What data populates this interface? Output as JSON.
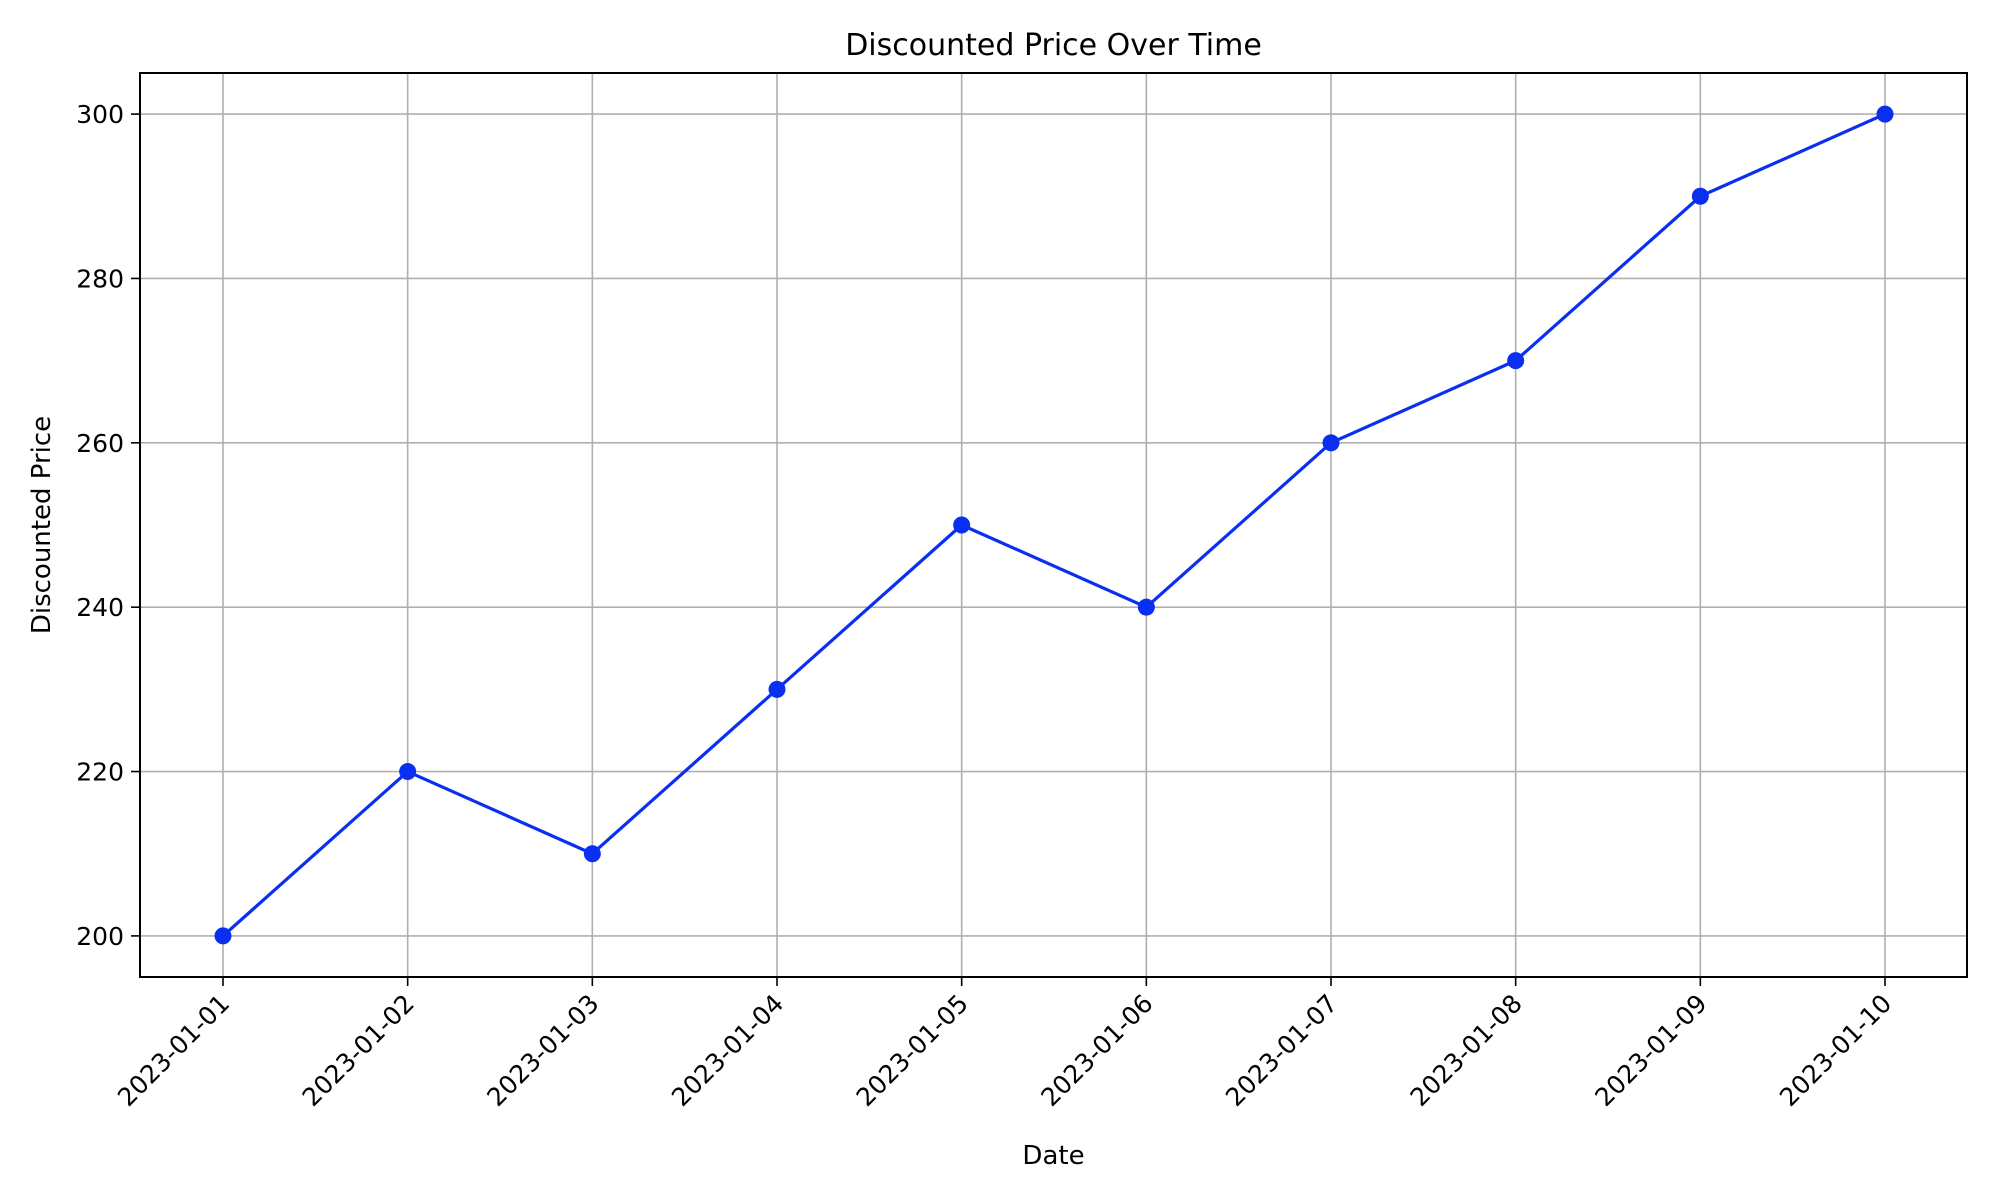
{
  "chart_data": {
    "type": "line",
    "title": "Discounted Price Over Time",
    "xlabel": "Date",
    "ylabel": "Discounted Price",
    "x": [
      "2023-01-01",
      "2023-01-02",
      "2023-01-03",
      "2023-01-04",
      "2023-01-05",
      "2023-01-06",
      "2023-01-07",
      "2023-01-08",
      "2023-01-09",
      "2023-01-10"
    ],
    "series": [
      {
        "values": [
          200,
          220,
          210,
          230,
          250,
          240,
          260,
          270,
          290,
          300
        ],
        "color": "#0a2ff0",
        "marker": "circle"
      }
    ],
    "ylim": [
      195,
      305
    ],
    "yticks": [
      200,
      220,
      240,
      260,
      280,
      300
    ],
    "grid": true,
    "grid_color": "#b0b0b0",
    "xtick_rotation": -45
  }
}
